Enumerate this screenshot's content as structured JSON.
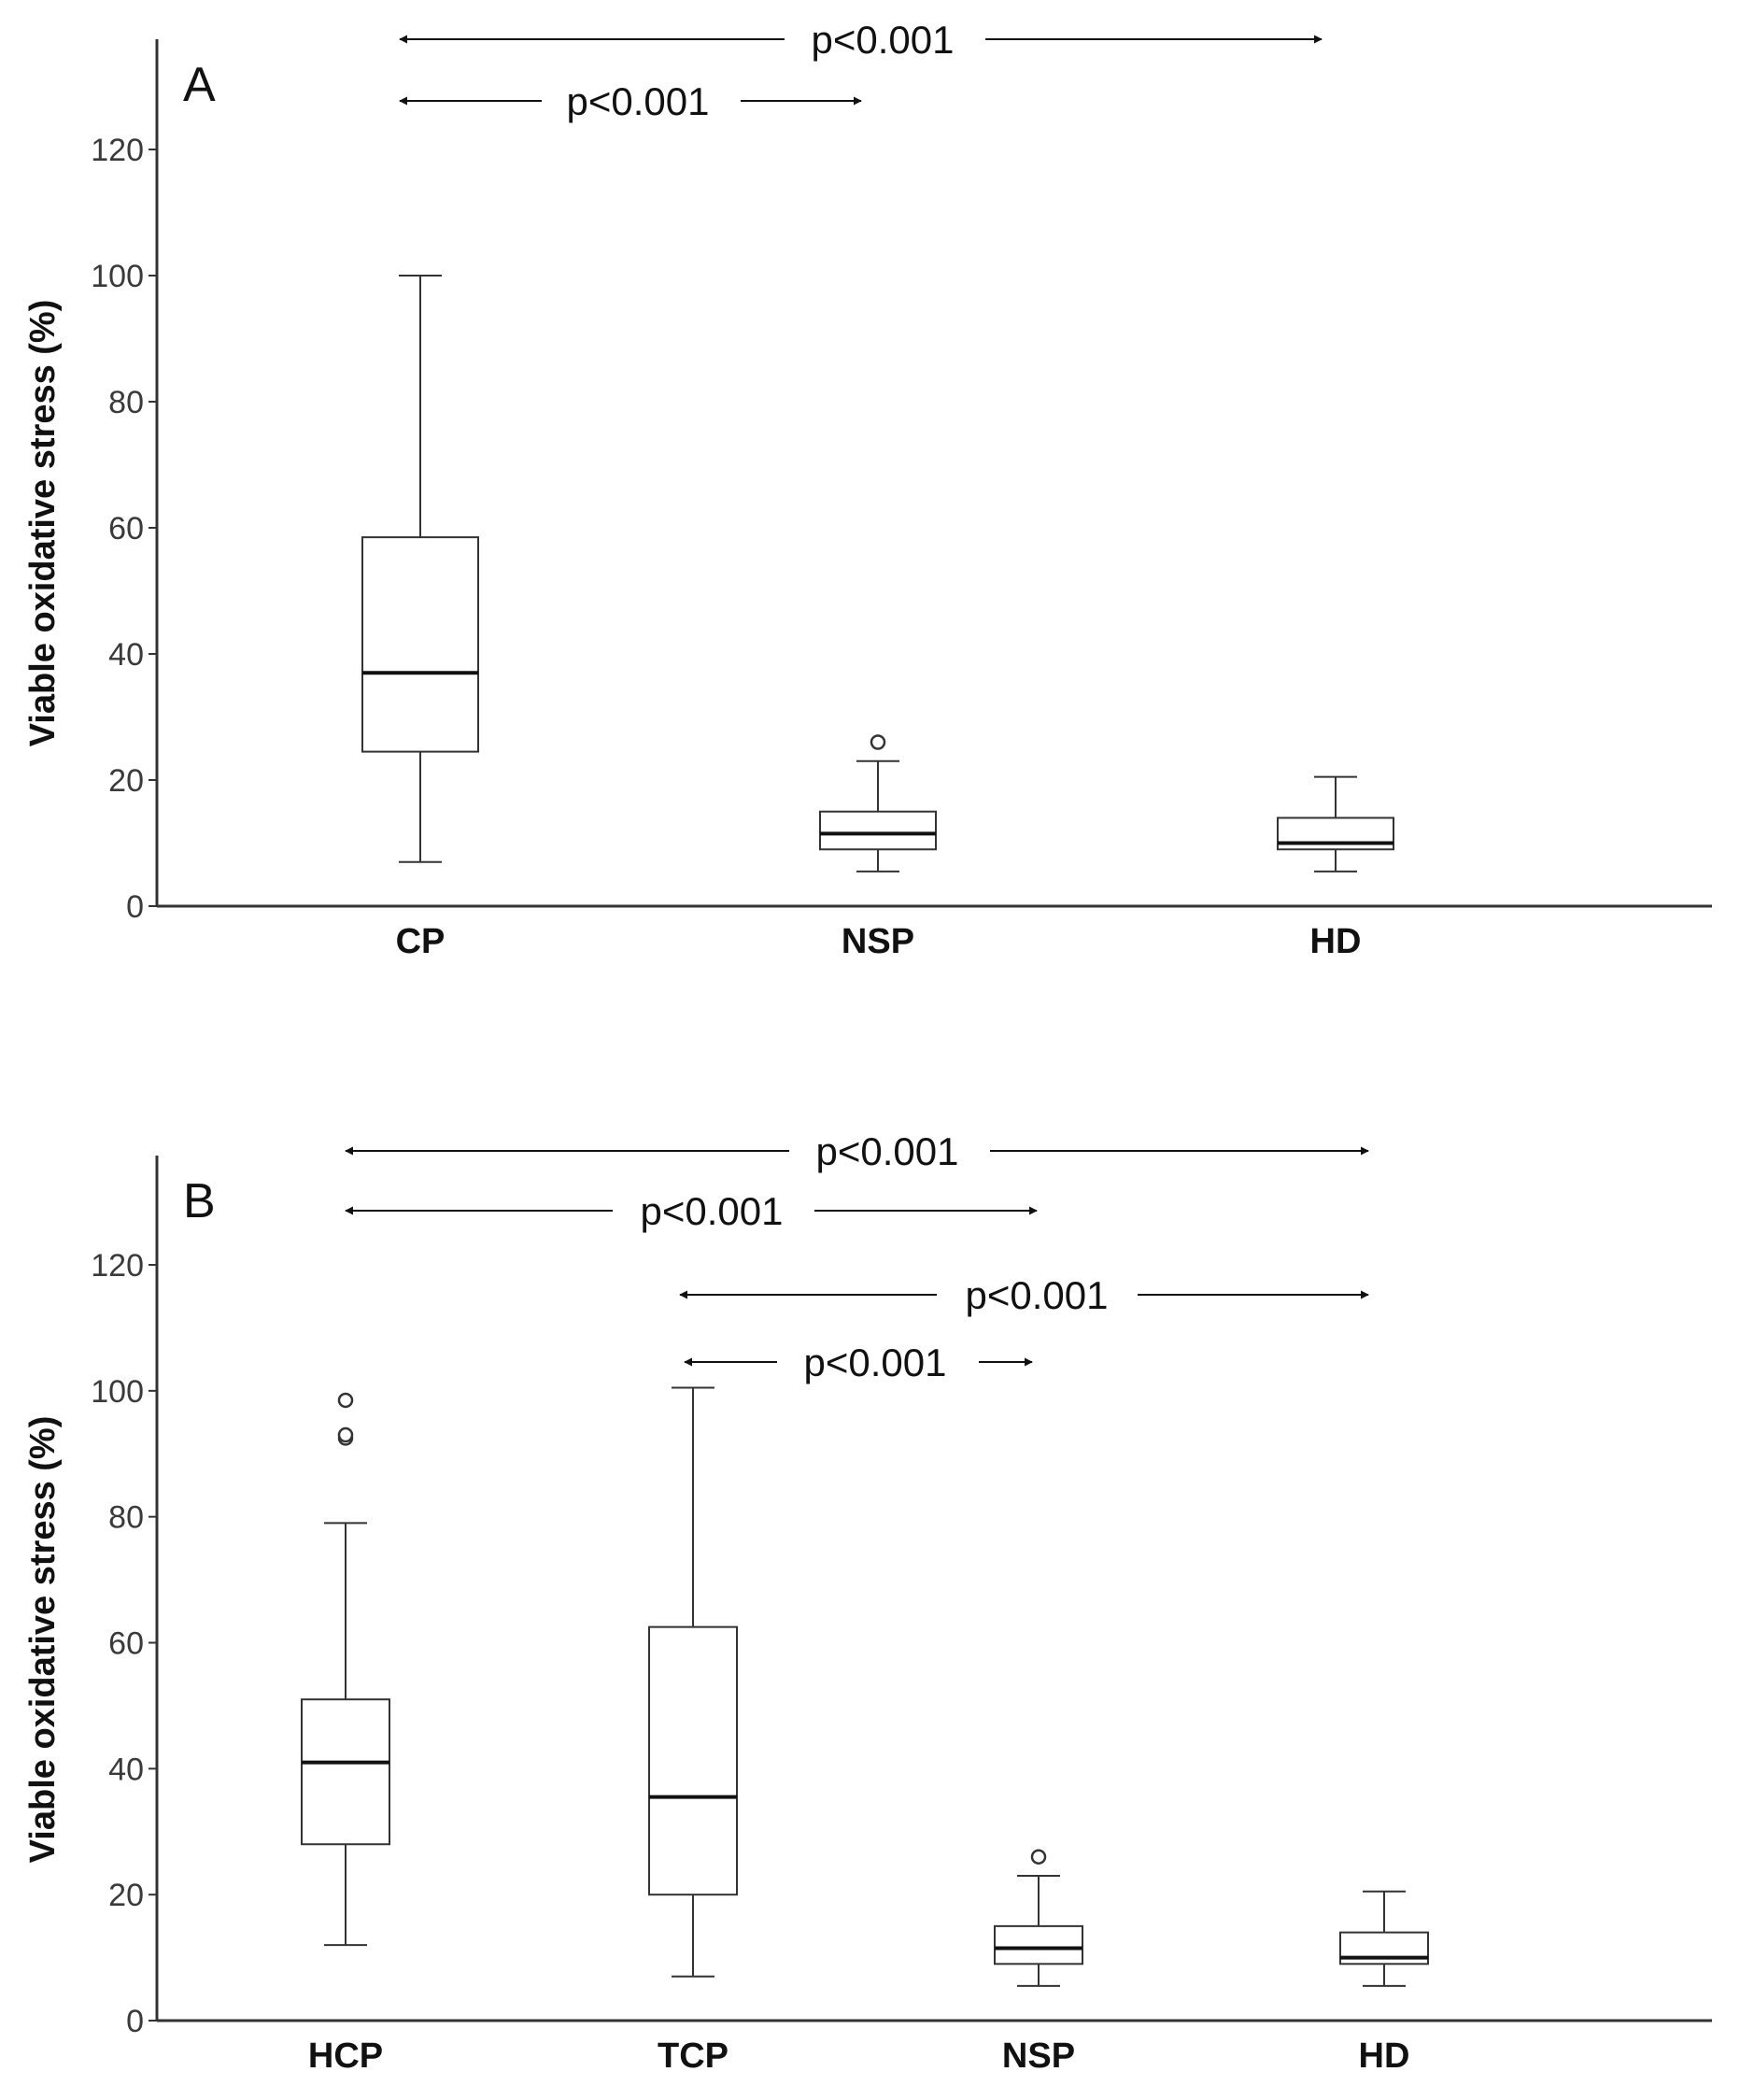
{
  "chart_data": [
    {
      "type": "boxplot",
      "panel_label": "A",
      "ylabel": "Viable oxidative stress (%)",
      "ylim": [
        0,
        135
      ],
      "yticks": [
        0,
        20,
        40,
        60,
        80,
        100,
        120
      ],
      "categories": [
        "CP",
        "NSP",
        "HD"
      ],
      "boxes": [
        {
          "name": "CP",
          "whisker_low": 7,
          "q1": 24.5,
          "median": 37,
          "q3": 58.5,
          "whisker_high": 100,
          "outliers": []
        },
        {
          "name": "NSP",
          "whisker_low": 5.5,
          "q1": 9,
          "median": 11.5,
          "q3": 15,
          "whisker_high": 23,
          "outliers": [
            26
          ]
        },
        {
          "name": "HD",
          "whisker_low": 5.5,
          "q1": 9,
          "median": 10,
          "q3": 14,
          "whisker_high": 20.5,
          "outliers": []
        }
      ],
      "comparisons": [
        {
          "from": "CP",
          "to": "HD",
          "label": "p<0.001"
        },
        {
          "from": "CP",
          "to": "NSP",
          "label": "p<0.001"
        }
      ]
    },
    {
      "type": "boxplot",
      "panel_label": "B",
      "ylabel": "Viable oxidative stress (%)",
      "ylim": [
        0,
        137
      ],
      "yticks": [
        0,
        20,
        40,
        60,
        80,
        100,
        120
      ],
      "categories": [
        "HCP",
        "TCP",
        "NSP",
        "HD"
      ],
      "boxes": [
        {
          "name": "HCP",
          "whisker_low": 12,
          "q1": 28,
          "median": 41,
          "q3": 51,
          "whisker_high": 79,
          "outliers": [
            92.5,
            93,
            98.5
          ]
        },
        {
          "name": "TCP",
          "whisker_low": 7,
          "q1": 20,
          "median": 35.5,
          "q3": 62.5,
          "whisker_high": 100.5,
          "outliers": []
        },
        {
          "name": "NSP",
          "whisker_low": 5.5,
          "q1": 9,
          "median": 11.5,
          "q3": 15,
          "whisker_high": 23,
          "outliers": [
            26
          ]
        },
        {
          "name": "HD",
          "whisker_low": 5.5,
          "q1": 9,
          "median": 10,
          "q3": 14,
          "whisker_high": 20.5,
          "outliers": []
        }
      ],
      "comparisons": [
        {
          "from": "HCP",
          "to": "HD",
          "label": "p<0.001"
        },
        {
          "from": "HCP",
          "to": "NSP",
          "label": "p<0.001"
        },
        {
          "from": "TCP",
          "to": "HD",
          "label": "p<0.001"
        },
        {
          "from": "TCP",
          "to": "NSP",
          "label": "p<0.001"
        }
      ]
    }
  ]
}
